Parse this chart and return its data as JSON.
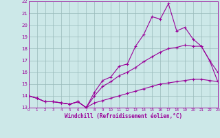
{
  "xlabel": "Windchill (Refroidissement éolien,°C)",
  "bg_color": "#cce8e8",
  "line_color": "#990099",
  "grid_color": "#99bbbb",
  "xmin": 0,
  "xmax": 23,
  "ymin": 13,
  "ymax": 22,
  "line1_x": [
    0,
    1,
    2,
    3,
    4,
    5,
    6,
    7,
    8,
    9,
    10,
    11,
    12,
    13,
    14,
    15,
    16,
    17,
    18,
    19,
    20,
    21,
    22,
    23
  ],
  "line1_y": [
    14.0,
    13.8,
    13.5,
    13.5,
    13.4,
    13.3,
    13.5,
    13.0,
    14.3,
    15.3,
    15.6,
    16.5,
    16.7,
    18.2,
    19.2,
    20.7,
    20.5,
    21.8,
    19.5,
    19.8,
    18.8,
    18.2,
    17.0,
    16.0
  ],
  "line2_x": [
    0,
    1,
    2,
    3,
    4,
    5,
    6,
    7,
    8,
    9,
    10,
    11,
    12,
    13,
    14,
    15,
    16,
    17,
    18,
    19,
    20,
    21,
    22,
    23
  ],
  "line2_y": [
    14.0,
    13.8,
    13.5,
    13.5,
    13.4,
    13.3,
    13.5,
    13.0,
    14.0,
    14.8,
    15.2,
    15.7,
    16.0,
    16.4,
    16.9,
    17.3,
    17.7,
    18.0,
    18.1,
    18.3,
    18.2,
    18.2,
    17.0,
    15.2
  ],
  "line3_x": [
    0,
    1,
    2,
    3,
    4,
    5,
    6,
    7,
    8,
    9,
    10,
    11,
    12,
    13,
    14,
    15,
    16,
    17,
    18,
    19,
    20,
    21,
    22,
    23
  ],
  "line3_y": [
    14.0,
    13.8,
    13.5,
    13.5,
    13.4,
    13.3,
    13.5,
    13.0,
    13.4,
    13.6,
    13.8,
    14.0,
    14.2,
    14.4,
    14.6,
    14.8,
    15.0,
    15.1,
    15.2,
    15.3,
    15.4,
    15.4,
    15.3,
    15.2
  ]
}
